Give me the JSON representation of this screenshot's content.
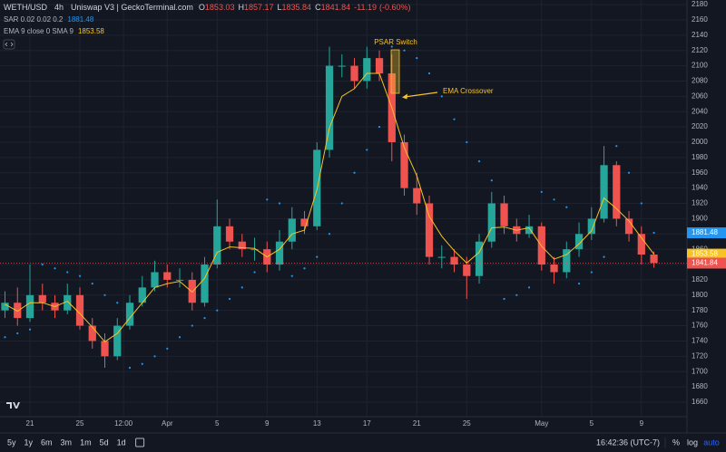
{
  "chart_data": {
    "type": "candlestick",
    "symbol": "WETH/USD",
    "interval": "4h",
    "source": "Uniswap V3 | GeckoTerminal.com",
    "ohlc_keys": [
      "O",
      "H",
      "L",
      "C"
    ],
    "change": -11.19,
    "change_pct": {
      "value": -0.6,
      "label": "(-0.60%)"
    },
    "x": [
      -2,
      -1,
      0,
      1,
      2,
      3,
      4,
      5,
      6,
      7,
      8,
      9,
      10,
      11,
      12,
      13,
      14,
      15,
      16,
      17,
      18,
      19,
      20,
      21,
      22,
      23,
      24,
      25,
      26,
      27,
      28,
      29,
      30,
      31,
      32,
      33,
      34,
      35,
      36,
      37,
      38,
      39,
      40,
      41,
      42,
      43,
      44,
      45,
      46,
      47,
      48,
      49,
      50
    ],
    "open": [
      1780,
      1790,
      1770,
      1800,
      1790,
      1780,
      1800,
      1760,
      1740,
      1720,
      1760,
      1790,
      1810,
      1830,
      1820,
      1820,
      1790,
      1840,
      1890,
      1870,
      1860,
      1860,
      1840,
      1870,
      1900,
      1890,
      1990,
      2100,
      2100,
      2080,
      2110,
      2090,
      2000,
      1940,
      1920,
      1850,
      1850,
      1840,
      1825,
      1870,
      1920,
      1890,
      1880,
      1890,
      1840,
      1830,
      1860,
      1880,
      1900,
      1970,
      1900,
      1880,
      1853.03
    ],
    "high": [
      1805,
      1810,
      1840,
      1815,
      1800,
      1815,
      1810,
      1770,
      1750,
      1770,
      1800,
      1825,
      1845,
      1840,
      1835,
      1830,
      1850,
      1925,
      1900,
      1880,
      1875,
      1870,
      1885,
      1915,
      1910,
      2000,
      2125,
      2115,
      2110,
      2125,
      2120,
      2115,
      2010,
      1960,
      1930,
      1865,
      1860,
      1850,
      1880,
      1935,
      1930,
      1900,
      1905,
      1895,
      1850,
      1870,
      1895,
      1915,
      1995,
      1975,
      1910,
      1890,
      1857.17
    ],
    "low": [
      1770,
      1760,
      1765,
      1780,
      1770,
      1775,
      1755,
      1730,
      1705,
      1715,
      1755,
      1785,
      1805,
      1810,
      1810,
      1780,
      1785,
      1835,
      1860,
      1850,
      1845,
      1830,
      1832,
      1860,
      1880,
      1885,
      1980,
      2085,
      2070,
      2070,
      2080,
      1975,
      1930,
      1905,
      1840,
      1835,
      1830,
      1795,
      1815,
      1862,
      1880,
      1870,
      1875,
      1832,
      1815,
      1822,
      1850,
      1872,
      1895,
      1890,
      1870,
      1840,
      1835.84
    ],
    "close": [
      1790,
      1770,
      1800,
      1790,
      1780,
      1800,
      1760,
      1740,
      1720,
      1760,
      1790,
      1810,
      1830,
      1820,
      1820,
      1790,
      1840,
      1890,
      1870,
      1860,
      1860,
      1840,
      1870,
      1900,
      1890,
      1990,
      2100,
      2100,
      2080,
      2110,
      2090,
      2000,
      1940,
      1920,
      1850,
      1850,
      1840,
      1825,
      1870,
      1920,
      1890,
      1880,
      1890,
      1840,
      1830,
      1860,
      1880,
      1900,
      1970,
      1900,
      1880,
      1853.03,
      1841.84
    ],
    "up_color": "#26a69a",
    "down_color": "#ef5350",
    "series": [
      {
        "name": "EMA 9 close 0 SMA 9",
        "style": "line",
        "color": "#f7c325",
        "values": [
          1788,
          1779,
          1790,
          1790,
          1785,
          1792,
          1776,
          1758,
          1739,
          1750,
          1770,
          1790,
          1810,
          1815,
          1818,
          1804,
          1822,
          1856,
          1863,
          1862,
          1861,
          1850,
          1860,
          1880,
          1885,
          1938,
          2019,
          2060,
          2070,
          2090,
          2090,
          2045,
          1993,
          1956,
          1903,
          1877,
          1858,
          1842,
          1856,
          1888,
          1889,
          1885,
          1888,
          1864,
          1847,
          1853,
          1867,
          1884,
          1927,
          1913,
          1897,
          1875,
          1853.58
        ]
      },
      {
        "name": "SAR 0.02 0.02 0.2",
        "style": "dots",
        "color": "#2196f3",
        "values": [
          1745,
          1750,
          1755,
          1840,
          1835,
          1830,
          1825,
          1815,
          1800,
          1790,
          1705,
          1710,
          1720,
          1730,
          1745,
          1760,
          1770,
          1780,
          1795,
          1810,
          1830,
          1925,
          1920,
          1825,
          1835,
          1850,
          1880,
          1920,
          1960,
          1990,
          2020,
          2125,
          2120,
          2110,
          2090,
          2060,
          2030,
          2000,
          1975,
          1950,
          1795,
          1800,
          1810,
          1935,
          1925,
          1915,
          1815,
          1830,
          1850,
          1995,
          1960,
          1920,
          1881.48
        ]
      }
    ],
    "xlim": [
      -2.4,
      52.65
    ],
    "xticks": [
      {
        "value": 0,
        "label": "21"
      },
      {
        "value": 4,
        "label": "25"
      },
      {
        "value": 7.5,
        "label": "12:00"
      },
      {
        "value": 11,
        "label": "Apr"
      },
      {
        "value": 15,
        "label": "5"
      },
      {
        "value": 19,
        "label": "9"
      },
      {
        "value": 23,
        "label": "13"
      },
      {
        "value": 27,
        "label": "17"
      },
      {
        "value": 31,
        "label": "21"
      },
      {
        "value": 35,
        "label": "25"
      },
      {
        "value": 41,
        "label": "May"
      },
      {
        "value": 45,
        "label": "5"
      },
      {
        "value": 49,
        "label": "9"
      }
    ],
    "ylim": [
      1641,
      2186
    ],
    "yticks": [
      1660,
      1680,
      1700,
      1720,
      1740,
      1760,
      1780,
      1800,
      1820,
      1840,
      1860,
      1880,
      1900,
      1920,
      1940,
      1960,
      1980,
      2000,
      2020,
      2040,
      2060,
      2080,
      2100,
      2120,
      2140,
      2160,
      2180
    ],
    "grid": true,
    "annotations": [
      {
        "text": "PSAR Switch"
      },
      {
        "text": "EMA Crossover"
      }
    ]
  },
  "toolbar": {
    "ranges": [
      "5y",
      "1y",
      "6m",
      "3m",
      "1m",
      "5d",
      "1d"
    ],
    "clock": "16:42:36 (UTC-7)",
    "options": [
      "%",
      "log",
      "auto"
    ]
  }
}
